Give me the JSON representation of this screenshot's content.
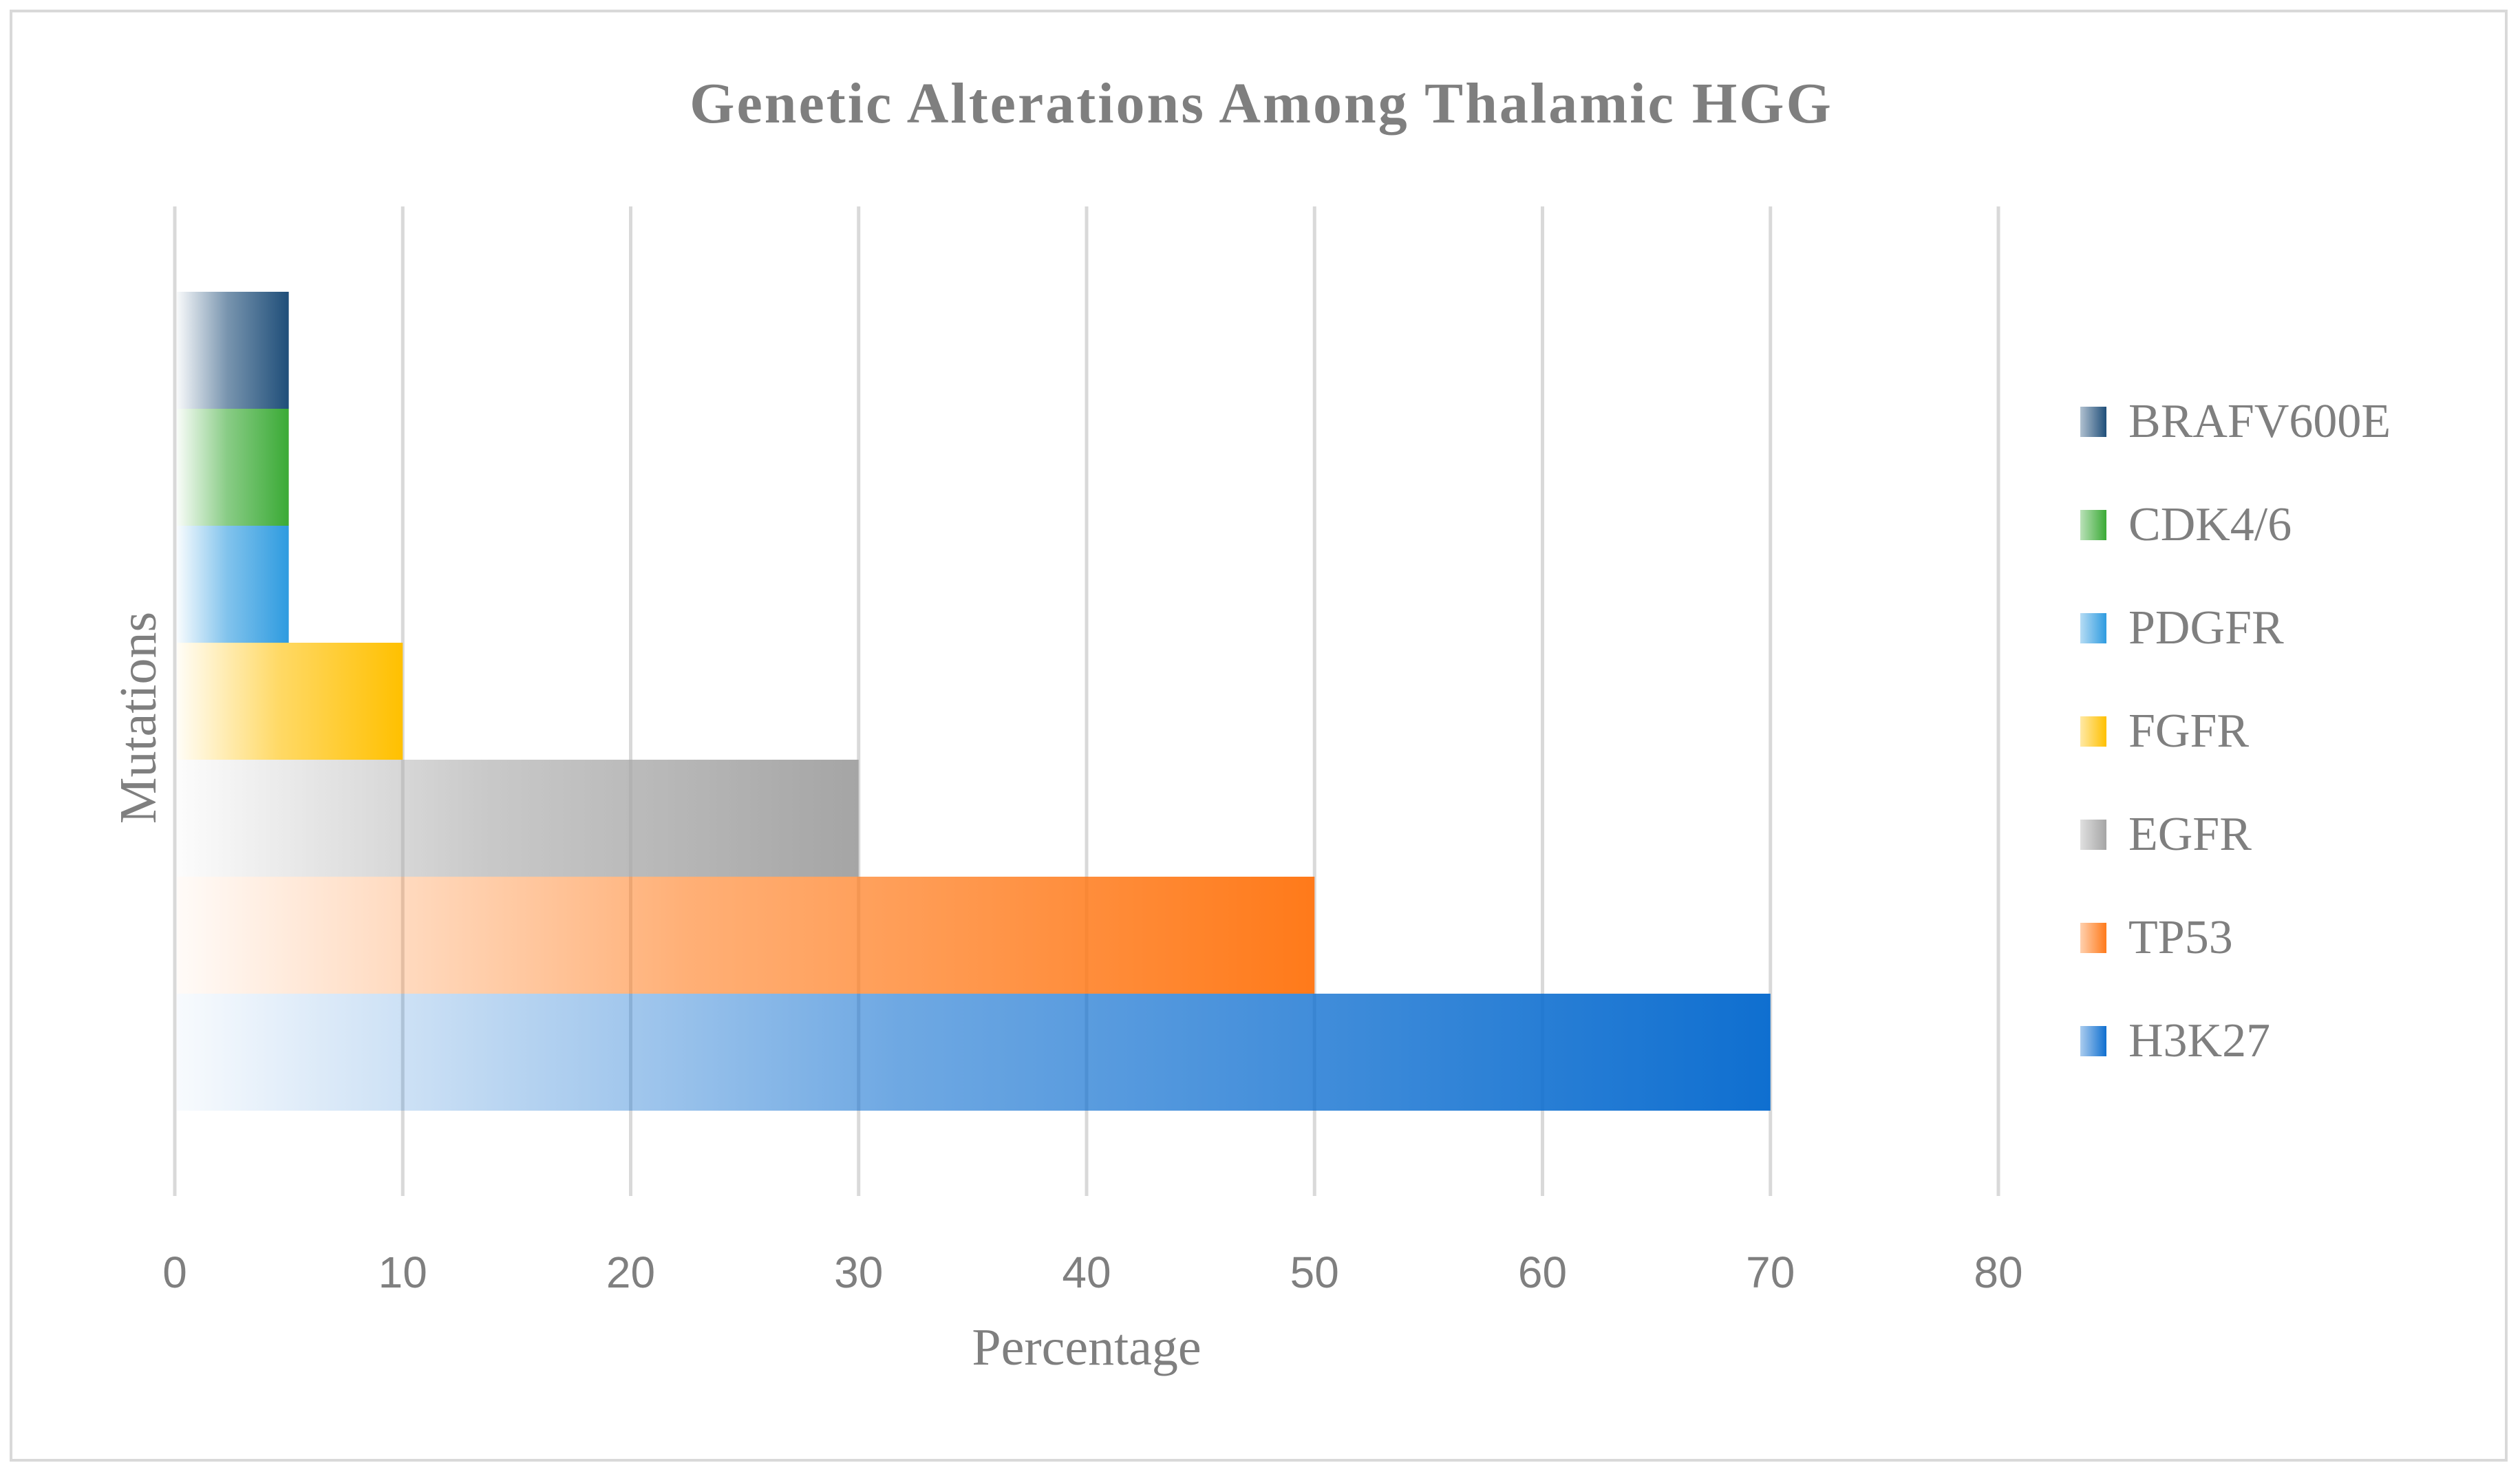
{
  "chart_data": {
    "type": "bar",
    "orientation": "horizontal",
    "title": "Genetic Alterations Among Thalamic HGG",
    "xlabel": "Percentage",
    "ylabel": "Mutations",
    "xlim": [
      0,
      80
    ],
    "x_ticks": [
      "0",
      "10",
      "20",
      "30",
      "40",
      "50",
      "60",
      "70",
      "80"
    ],
    "grid": "vertical",
    "legend_position": "right",
    "series": [
      {
        "name": "BRAFV600E",
        "value": 5,
        "color": "#1f4e79"
      },
      {
        "name": "CDK4/6",
        "value": 5,
        "color": "#3aaa35"
      },
      {
        "name": "PDGFR",
        "value": 5,
        "color": "#2e9be0"
      },
      {
        "name": "FGFR",
        "value": 10,
        "color": "#ffc000"
      },
      {
        "name": "EGFR",
        "value": 30,
        "color": "#a5a5a5"
      },
      {
        "name": "TP53",
        "value": 50,
        "color": "#ff7a1a"
      },
      {
        "name": "H3K27",
        "value": 70,
        "color": "#0f6fd0"
      }
    ]
  }
}
